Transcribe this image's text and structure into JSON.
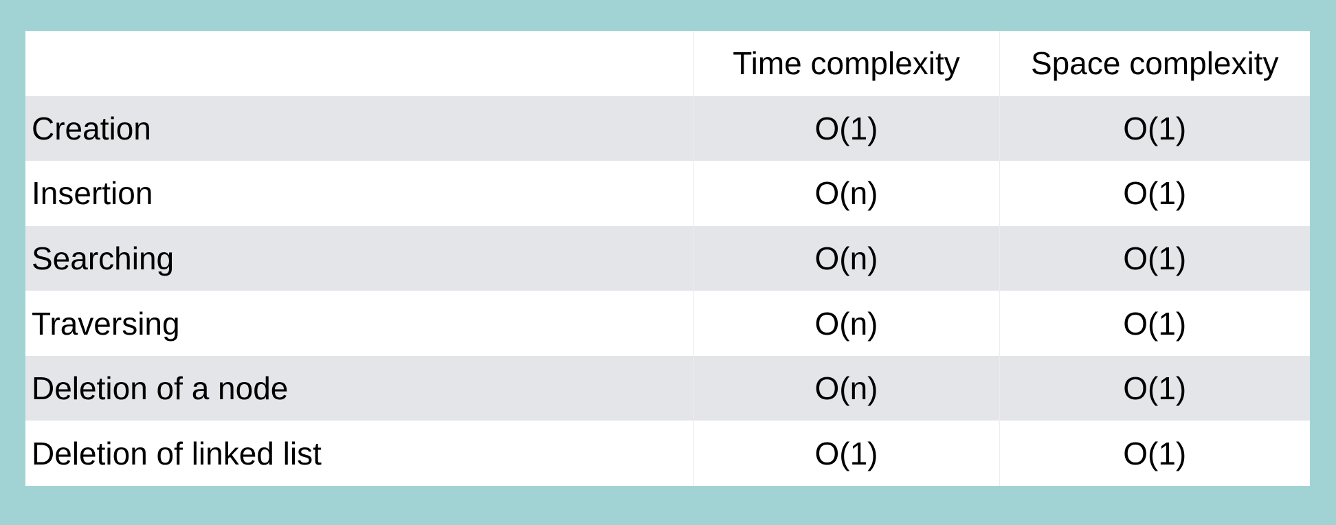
{
  "table": {
    "headers": [
      "",
      "Time complexity",
      "Space complexity"
    ],
    "rows": [
      {
        "operation": "Creation",
        "time": "O(1)",
        "space": "O(1)"
      },
      {
        "operation": "Insertion",
        "time": "O(n)",
        "space": "O(1)"
      },
      {
        "operation": "Searching",
        "time": "O(n)",
        "space": "O(1)"
      },
      {
        "operation": "Traversing",
        "time": "O(n)",
        "space": "O(1)"
      },
      {
        "operation": "Deletion of a node",
        "time": "O(n)",
        "space": "O(1)"
      },
      {
        "operation": "Deletion of linked list",
        "time": "O(1)",
        "space": "O(1)"
      }
    ]
  },
  "colors": {
    "background": "#a2d3d4",
    "row_stripe": "#e4e5e8",
    "row_plain": "#ffffff"
  }
}
